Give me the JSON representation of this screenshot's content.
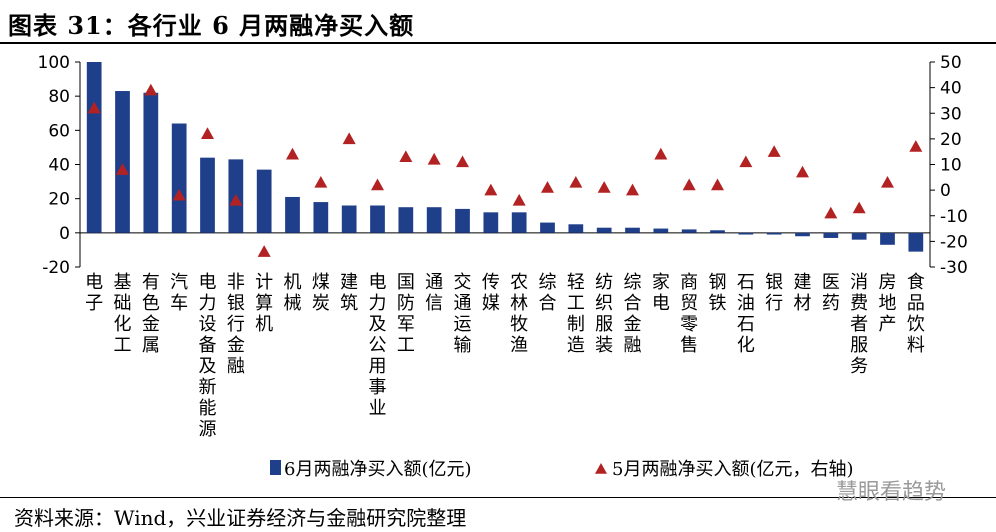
{
  "header": {
    "title": "图表 31：各行业 6 月两融净买入额"
  },
  "footer": {
    "source": "资料来源：Wind，兴业证券经济与金融研究院整理",
    "watermark": "慧眼看趋势"
  },
  "colors": {
    "bar": "#1f3f8a",
    "marker": "#b22222"
  },
  "chart_data": {
    "type": "bar",
    "title": "各行业 6 月两融净买入额",
    "categories": [
      "电子",
      "基础化工",
      "有色金属",
      "汽车",
      "电力设备及新能源",
      "非银行金融",
      "计算机",
      "机械",
      "煤炭",
      "建筑",
      "电力及公用事业",
      "国防军工",
      "通信",
      "交通运输",
      "传媒",
      "农林牧渔",
      "综合",
      "轻工制造",
      "纺织服装",
      "综合金融",
      "家电",
      "商贸零售",
      "钢铁",
      "石油石化",
      "银行",
      "建材",
      "医药",
      "消费者服务",
      "房地产",
      "食品饮料"
    ],
    "series": [
      {
        "name": "6月两融净买入额(亿元)",
        "axis": "left",
        "type": "bar",
        "values": [
          100,
          83,
          82,
          64,
          44,
          43,
          37,
          21,
          18,
          16,
          16,
          15,
          15,
          14,
          12,
          12,
          6,
          5,
          3,
          3,
          2.5,
          2,
          1.5,
          -1,
          -1,
          -2,
          -3,
          -4,
          -7,
          -11
        ]
      },
      {
        "name": "5月两融净买入额(亿元，右轴)",
        "axis": "right",
        "type": "scatter",
        "marker": "triangle",
        "values": [
          32,
          8,
          39,
          -2,
          22,
          -4,
          -24,
          14,
          3,
          20,
          2,
          13,
          12,
          11,
          0,
          -4,
          1,
          3,
          1,
          0,
          14,
          2,
          2,
          11,
          15,
          7,
          -9,
          -7,
          3,
          17
        ]
      }
    ],
    "y_left": {
      "min": -20,
      "max": 100,
      "ticks": [
        -20,
        0,
        20,
        40,
        60,
        80,
        100
      ]
    },
    "y_right": {
      "min": -30,
      "max": 50,
      "ticks": [
        -30,
        -20,
        -10,
        0,
        10,
        20,
        30,
        40,
        50
      ]
    },
    "legend": [
      {
        "label": "6月两融净买入额(亿元)",
        "shape": "bar"
      },
      {
        "label": "5月两融净买入额(亿元，右轴)",
        "shape": "triangle"
      }
    ],
    "legend_position": "bottom",
    "grid": false
  }
}
